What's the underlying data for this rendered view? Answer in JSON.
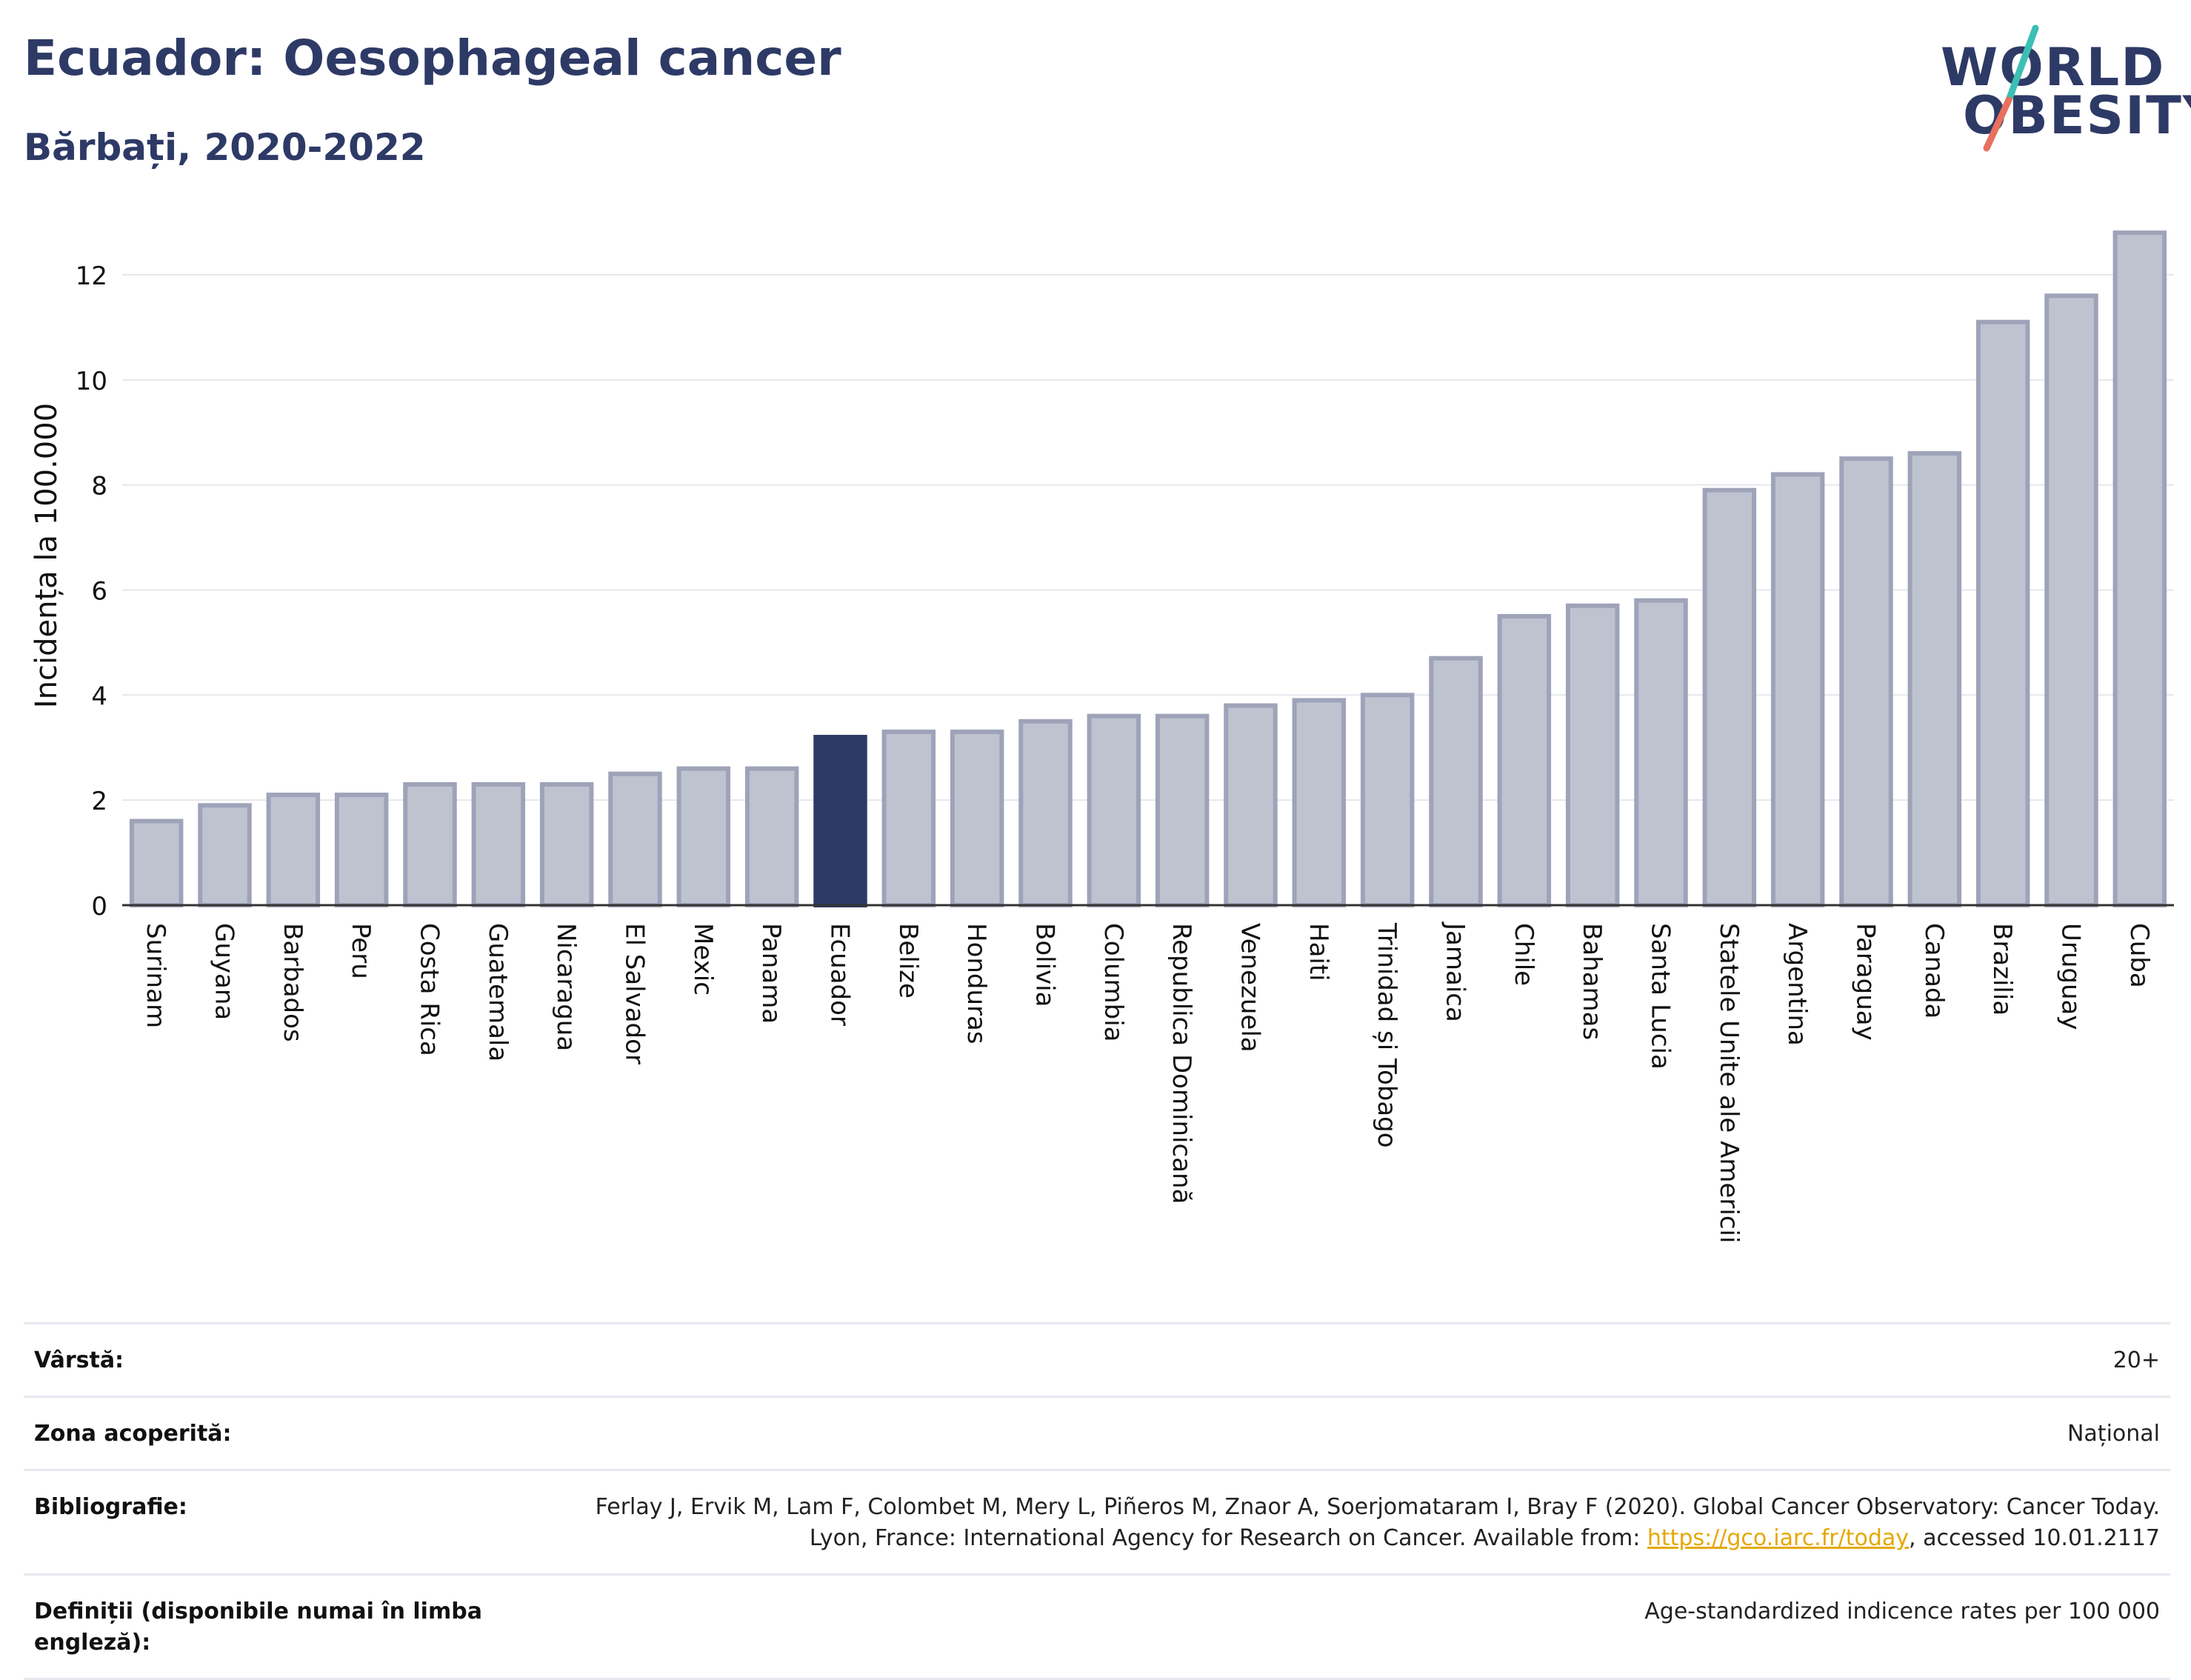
{
  "header": {
    "title": "Ecuador: Oesophageal cancer",
    "subtitle": "Bărbați, 2020-2022"
  },
  "logo": {
    "line1": "WORLD",
    "line2": "OBESITY"
  },
  "colors": {
    "bar_default": "#bfc3d0",
    "bar_default_stroke": "#9ea3b9",
    "bar_highlight": "#2e3a66",
    "logo_slash_teal": "#3cbfb4",
    "logo_slash_red": "#e8705e",
    "link": "#e5a800"
  },
  "chart_data": {
    "type": "bar",
    "ylabel": "Incidența la 100.000",
    "xlabel": "",
    "ylim": [
      0,
      13
    ],
    "yticks": [
      0,
      2,
      4,
      6,
      8,
      10,
      12
    ],
    "grid": true,
    "highlight": "Ecuador",
    "categories": [
      "Surinam",
      "Guyana",
      "Barbados",
      "Peru",
      "Costa Rica",
      "Guatemala",
      "Nicaragua",
      "El Salvador",
      "Mexic",
      "Panama",
      "Ecuador",
      "Belize",
      "Honduras",
      "Bolivia",
      "Columbia",
      "Republica Dominicană",
      "Venezuela",
      "Haiti",
      "Trinidad și Tobago",
      "Jamaica",
      "Chile",
      "Bahamas",
      "Santa Lucia",
      "Statele Unite ale Americii",
      "Argentina",
      "Paraguay",
      "Canada",
      "Brazilia",
      "Uruguay",
      "Cuba"
    ],
    "values": [
      1.6,
      1.9,
      2.1,
      2.1,
      2.3,
      2.3,
      2.3,
      2.5,
      2.6,
      2.6,
      3.2,
      3.3,
      3.3,
      3.5,
      3.6,
      3.6,
      3.8,
      3.9,
      4.0,
      4.7,
      5.5,
      5.7,
      5.8,
      7.9,
      8.2,
      8.5,
      8.6,
      11.1,
      11.6,
      12.8
    ]
  },
  "meta": {
    "age_label": "Vârstă:",
    "age_value": "20+",
    "area_label": "Zona acoperită:",
    "area_value": "Național",
    "biblio_label": "Bibliografie:",
    "biblio_text_1": "Ferlay J, Ervik M, Lam F, Colombet M, Mery L, Piñeros M, Znaor A, Soerjomataram I, Bray F (2020). Global Cancer Observatory: Cancer Today. Lyon, France: International Agency for Research on Cancer. Available from: ",
    "biblio_link": "https://gco.iarc.fr/today",
    "biblio_text_2": ", accessed 10.01.2117",
    "def_label": "Definiții (disponibile numai în limba engleză):",
    "def_value": "Age-standardized indicence rates per 100 000"
  }
}
